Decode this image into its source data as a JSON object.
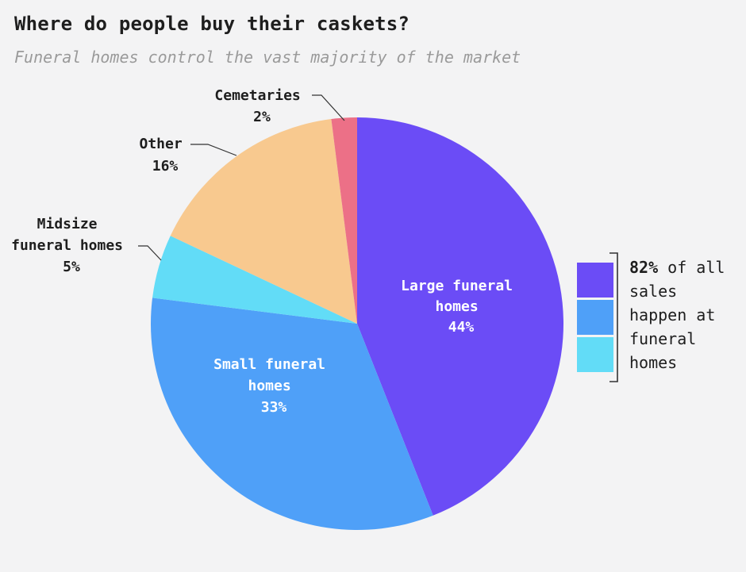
{
  "chart_data": {
    "type": "pie",
    "title": "Where do people buy their caskets?",
    "subtitle": "Funeral homes control the vast majority of the market",
    "slices": [
      {
        "label": "Large funeral homes",
        "value": 44,
        "display": "44%",
        "color": "#6b4cf6"
      },
      {
        "label": "Small funeral homes",
        "value": 33,
        "display": "33%",
        "color": "#4fa0f8"
      },
      {
        "label": "Midsize funeral homes",
        "value": 5,
        "display": "5%",
        "color": "#62dcf7"
      },
      {
        "label": "Other",
        "value": 16,
        "display": "16%",
        "color": "#f8c98f"
      },
      {
        "label": "Cemetaries",
        "value": 2,
        "display": "2%",
        "color": "#ec7087"
      }
    ],
    "annotation": {
      "bold": "82%",
      "text": " of all sales happen at funeral homes"
    }
  }
}
